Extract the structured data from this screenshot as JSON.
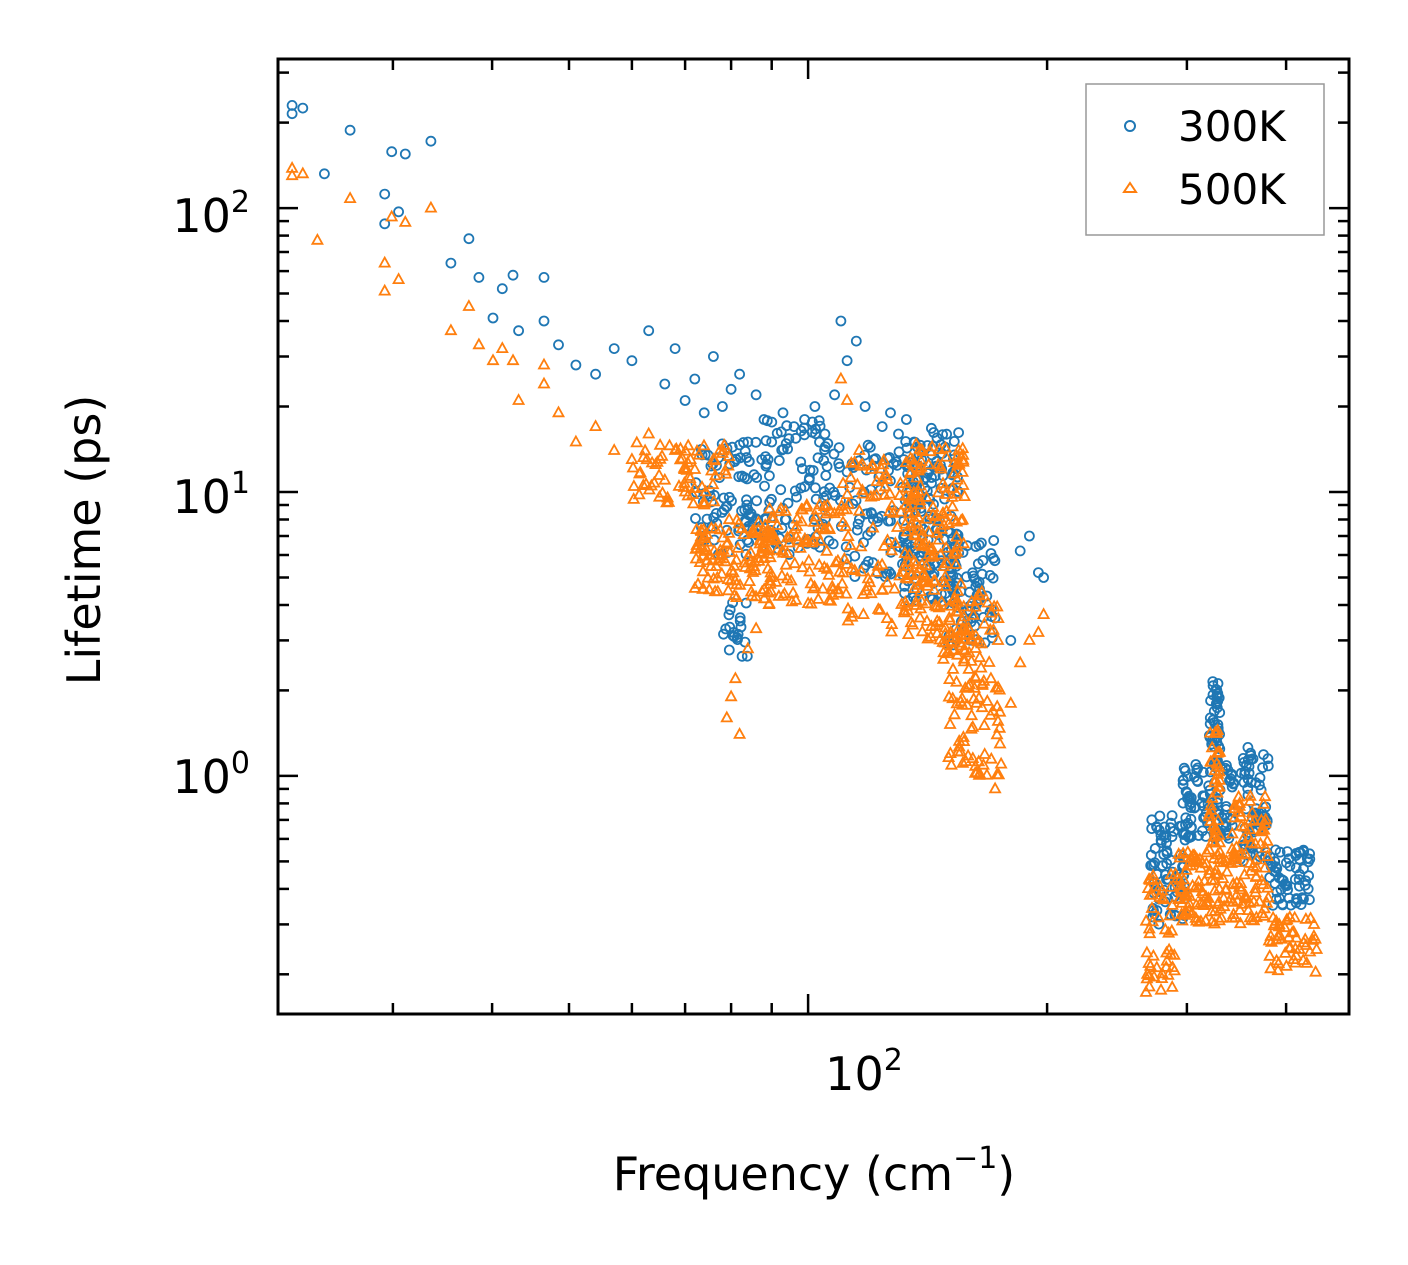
{
  "chart_data": {
    "type": "scatter",
    "xscale": "log",
    "yscale": "log",
    "xlim": [
      21.5,
      480
    ],
    "ylim": [
      0.145,
      335
    ],
    "xlabel": {
      "base": "Frequency (cm",
      "sup": "−1",
      "end": ")"
    },
    "ylabel": "Lifetime (ps)",
    "x_ticks": [
      {
        "base": "10",
        "exp": "2",
        "value": 100
      }
    ],
    "y_ticks": [
      {
        "base": "10",
        "exp": "0",
        "value": 1
      },
      {
        "base": "10",
        "exp": "1",
        "value": 10
      },
      {
        "base": "10",
        "exp": "2",
        "value": 100
      }
    ],
    "legend_position": "top-right",
    "series": [
      {
        "name": "300K",
        "marker": "circle",
        "color": "#1f77b4",
        "anchors": [
          [
            22.4,
            215
          ],
          [
            22.4,
            230
          ],
          [
            23.1,
            225
          ],
          [
            24.6,
            132
          ],
          [
            26.5,
            188
          ],
          [
            29.3,
            112
          ],
          [
            29.3,
            88
          ],
          [
            29.9,
            158
          ],
          [
            30.5,
            97
          ],
          [
            31.1,
            155
          ],
          [
            33.5,
            172
          ],
          [
            35.5,
            64
          ],
          [
            37.4,
            78
          ],
          [
            38.5,
            57
          ],
          [
            40.1,
            41
          ],
          [
            41.2,
            52
          ],
          [
            42.5,
            58
          ],
          [
            43.2,
            37
          ],
          [
            46.5,
            57
          ],
          [
            46.5,
            40
          ],
          [
            48.5,
            33
          ],
          [
            51,
            28
          ],
          [
            54,
            26
          ],
          [
            57,
            32
          ],
          [
            60,
            29
          ],
          [
            63,
            37
          ],
          [
            66,
            24
          ],
          [
            68,
            32
          ],
          [
            70,
            21
          ],
          [
            72,
            25
          ],
          [
            74,
            19
          ],
          [
            76,
            30
          ],
          [
            78,
            20
          ],
          [
            80,
            23
          ],
          [
            82,
            26
          ],
          [
            84,
            15
          ],
          [
            86,
            22
          ],
          [
            88,
            18
          ],
          [
            90,
            15
          ],
          [
            93,
            19
          ],
          [
            96,
            17
          ],
          [
            99,
            18
          ],
          [
            102,
            20
          ],
          [
            105,
            16
          ],
          [
            108,
            22
          ],
          [
            110,
            40
          ],
          [
            112,
            29
          ],
          [
            115,
            34
          ],
          [
            118,
            20
          ],
          [
            121,
            13
          ],
          [
            124,
            17
          ],
          [
            127,
            19
          ],
          [
            130,
            16
          ],
          [
            133,
            18
          ],
          [
            136,
            15
          ],
          [
            139,
            13
          ],
          [
            142,
            9.5
          ],
          [
            145,
            8
          ],
          [
            148,
            5.5
          ],
          [
            152,
            4.5
          ],
          [
            156,
            3.5
          ],
          [
            160,
            3.8
          ],
          [
            165,
            4.4
          ],
          [
            172,
            3.6
          ],
          [
            180,
            3.0
          ],
          [
            185,
            6.2
          ],
          [
            190,
            7.0
          ],
          [
            195,
            5.2
          ],
          [
            198,
            5.0
          ]
        ],
        "clusters": [
          {
            "x": [
              72,
              90
            ],
            "y": [
              6,
              15
            ],
            "n": 90
          },
          {
            "x": [
              78,
              84
            ],
            "y": [
              2.6,
              4.2
            ],
            "n": 20
          },
          {
            "x": [
              88,
              110
            ],
            "y": [
              6,
              18
            ],
            "n": 90
          },
          {
            "x": [
              110,
              140
            ],
            "y": [
              5,
              15
            ],
            "n": 90
          },
          {
            "x": [
              132,
              155
            ],
            "y": [
              4,
              17
            ],
            "n": 140
          },
          {
            "x": [
              150,
              172
            ],
            "y": [
              2.8,
              7
            ],
            "n": 70
          },
          {
            "x": [
              270,
              300
            ],
            "y": [
              0.3,
              0.75
            ],
            "n": 80
          },
          {
            "x": [
              295,
              345
            ],
            "y": [
              0.6,
              1.1
            ],
            "n": 100
          },
          {
            "x": [
              320,
              330
            ],
            "y": [
              1.1,
              2.3
            ],
            "n": 40
          },
          {
            "x": [
              350,
              380
            ],
            "y": [
              0.5,
              1.3
            ],
            "n": 70
          },
          {
            "x": [
              380,
              430
            ],
            "y": [
              0.35,
              0.55
            ],
            "n": 60
          }
        ]
      },
      {
        "name": "500K",
        "marker": "triangle",
        "color": "#ff7f0e",
        "anchors": [
          [
            22.4,
            130
          ],
          [
            22.4,
            138
          ],
          [
            23.1,
            132
          ],
          [
            24.1,
            77
          ],
          [
            26.5,
            108
          ],
          [
            29.3,
            64
          ],
          [
            29.3,
            51
          ],
          [
            29.9,
            93
          ],
          [
            30.5,
            56
          ],
          [
            31.1,
            89
          ],
          [
            33.5,
            100
          ],
          [
            35.5,
            37
          ],
          [
            37.4,
            45
          ],
          [
            38.5,
            33
          ],
          [
            40.1,
            29
          ],
          [
            41.2,
            32
          ],
          [
            42.5,
            29
          ],
          [
            43.2,
            21
          ],
          [
            46.5,
            24
          ],
          [
            46.5,
            28
          ],
          [
            48.5,
            19
          ],
          [
            51,
            15
          ],
          [
            54,
            17
          ],
          [
            57,
            14
          ],
          [
            60,
            13
          ],
          [
            63,
            16
          ],
          [
            66,
            11
          ],
          [
            68,
            14
          ],
          [
            70,
            10
          ],
          [
            72,
            12
          ],
          [
            74,
            9
          ],
          [
            76,
            13
          ],
          [
            79,
            1.6
          ],
          [
            80,
            1.9
          ],
          [
            81,
            2.2
          ],
          [
            82,
            1.4
          ],
          [
            84,
            2.8
          ],
          [
            86,
            3.3
          ],
          [
            110,
            25
          ],
          [
            112,
            21
          ],
          [
            116,
            14
          ],
          [
            120,
            12
          ],
          [
            124,
            4.5
          ],
          [
            172,
            0.9
          ],
          [
            175,
            1.1
          ],
          [
            180,
            1.8
          ],
          [
            185,
            2.5
          ],
          [
            190,
            3.0
          ],
          [
            195,
            3.2
          ],
          [
            198,
            3.7
          ]
        ],
        "clusters": [
          {
            "x": [
              60,
              80
            ],
            "y": [
              9,
              15
            ],
            "n": 70
          },
          {
            "x": [
              72,
              90
            ],
            "y": [
              4.2,
              8
            ],
            "n": 110
          },
          {
            "x": [
              88,
              112
            ],
            "y": [
              4,
              9
            ],
            "n": 110
          },
          {
            "x": [
              110,
              140
            ],
            "y": [
              3.2,
              13
            ],
            "n": 110
          },
          {
            "x": [
              132,
              158
            ],
            "y": [
              2.5,
              15
            ],
            "n": 160
          },
          {
            "x": [
              150,
              175
            ],
            "y": [
              1.0,
              4.5
            ],
            "n": 120
          },
          {
            "x": [
              265,
              290
            ],
            "y": [
              0.17,
              0.45
            ],
            "n": 50
          },
          {
            "x": [
              290,
              350
            ],
            "y": [
              0.3,
              0.55
            ],
            "n": 110
          },
          {
            "x": [
              320,
              330
            ],
            "y": [
              0.55,
              1.45
            ],
            "n": 40
          },
          {
            "x": [
              340,
              380
            ],
            "y": [
              0.3,
              0.85
            ],
            "n": 80
          },
          {
            "x": [
              380,
              440
            ],
            "y": [
              0.2,
              0.32
            ],
            "n": 50
          }
        ]
      }
    ]
  }
}
